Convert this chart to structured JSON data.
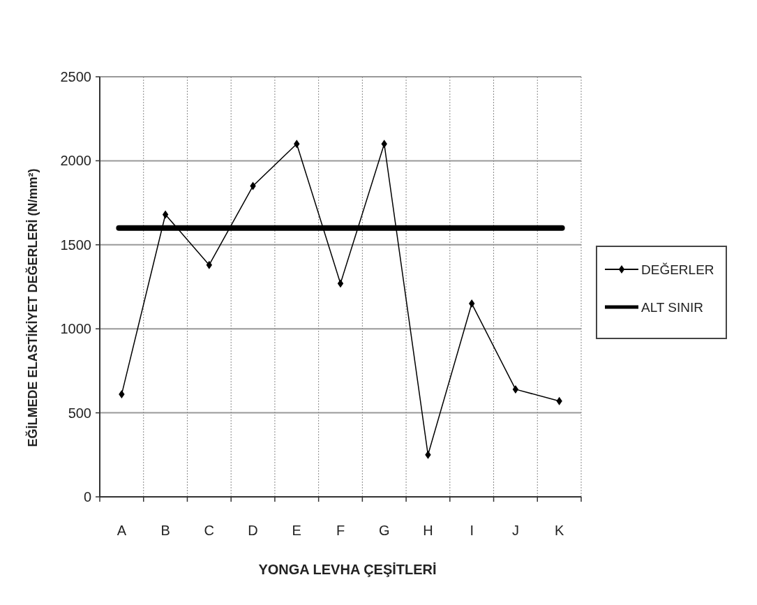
{
  "chart_data": {
    "type": "line",
    "xlabel": "YONGA LEVHA ÇEŞİTLERİ",
    "ylabel": "EĞİLMEDE ELASTİKİYET DEĞERLERİ  (N/mm²)",
    "categories": [
      "A",
      "B",
      "C",
      "D",
      "E",
      "F",
      "G",
      "H",
      "I",
      "J",
      "K"
    ],
    "series": [
      {
        "name": "DEĞERLER",
        "color": "#000000",
        "values": [
          610,
          1680,
          1380,
          1850,
          2100,
          1270,
          2100,
          250,
          1150,
          640,
          570
        ]
      }
    ],
    "ref_lines": [
      {
        "axis": "y",
        "value": 1600,
        "label": "ALT SINIR",
        "color": "#000000"
      }
    ],
    "ylim": [
      0,
      2500
    ],
    "yticks": [
      0,
      500,
      1000,
      1500,
      2000,
      2500
    ],
    "grid": true,
    "legend": "right",
    "marker": "diamond",
    "line_style": "solid"
  }
}
